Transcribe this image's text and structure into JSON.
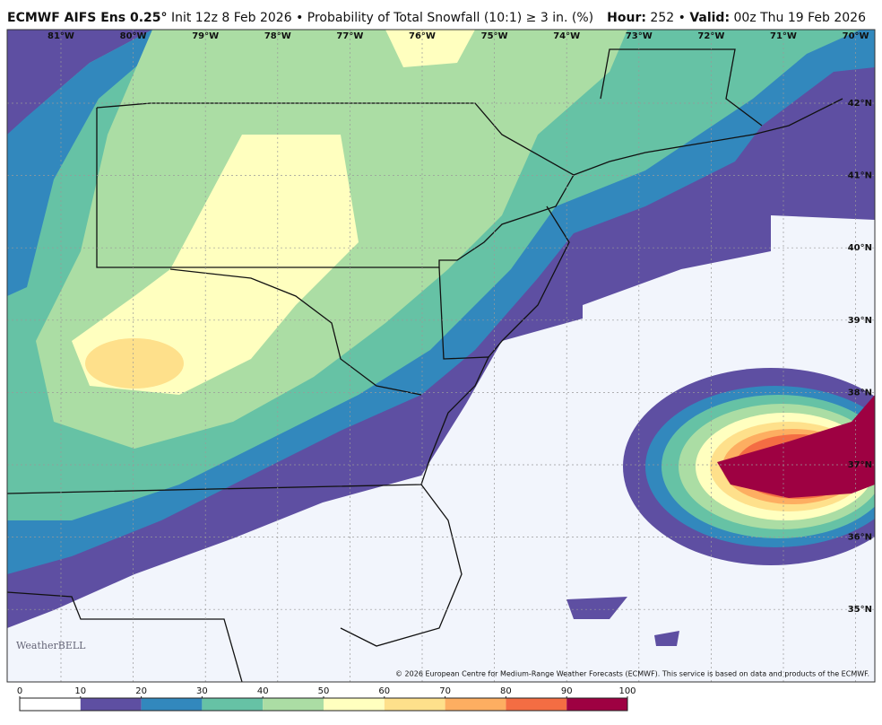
{
  "header": {
    "title": "ECMWF AIFS Ens 0.25°",
    "subtitle": "Init 12z 8 Feb 2026 • Probability of Total Snowfall (10:1) ≥ 3 in. (%)",
    "hour_label": "Hour:",
    "hour": "252",
    "separator": "•",
    "valid_label": "Valid:",
    "valid": "00z Thu 19 Feb 2026"
  },
  "longitudes": [
    "81°W",
    "80°W",
    "79°W",
    "78°W",
    "77°W",
    "76°W",
    "75°W",
    "74°W",
    "73°W",
    "72°W",
    "71°W",
    "70°W"
  ],
  "latitudes": [
    "42°N",
    "41°N",
    "40°N",
    "39°N",
    "38°N",
    "37°N",
    "36°N",
    "35°N"
  ],
  "watermark": "WeatherBELL",
  "copyright": "© 2026 European Centre for Medium-Range Weather Forecasts (ECMWF). This service is based on data and products of the ECMWF.",
  "colorbar": {
    "ticks": [
      0,
      10,
      20,
      30,
      40,
      50,
      60,
      70,
      80,
      90,
      100
    ],
    "colors": [
      "#ffffff",
      "#5e4fa2",
      "#3288bd",
      "#66c2a5",
      "#abdda4",
      "#ffffbf",
      "#fee08b",
      "#fdae61",
      "#f46d43",
      "#9e0142"
    ]
  }
}
